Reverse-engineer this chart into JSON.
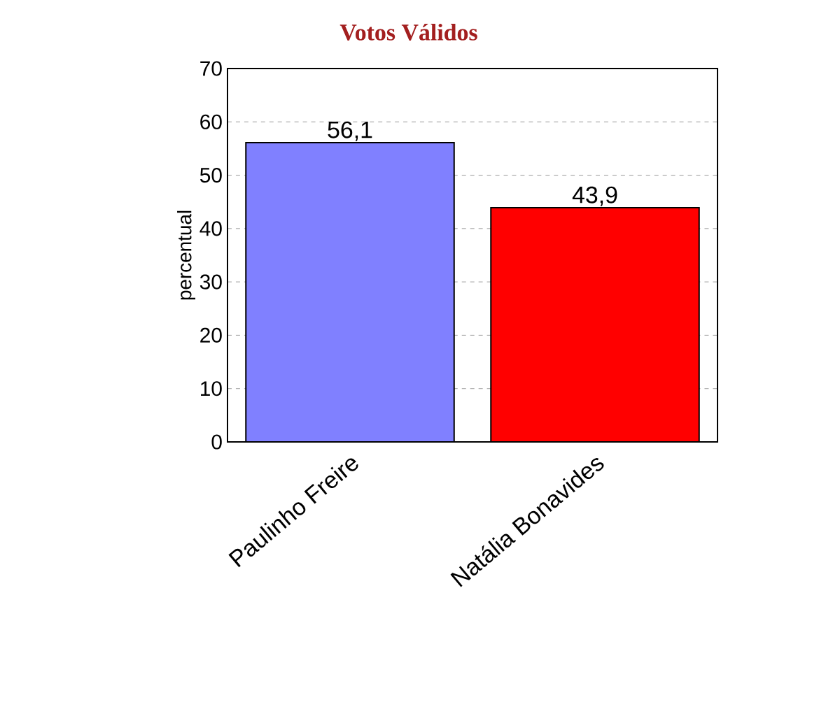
{
  "chart_data": {
    "type": "bar",
    "title": "Votos Válidos",
    "ylabel": "percentual",
    "categories": [
      "Paulinho Freire",
      "Natália Bonavides"
    ],
    "values": [
      56.1,
      43.9
    ],
    "colors": [
      "#8080ff",
      "#ff0000"
    ],
    "value_labels": [
      "56,1",
      "43,9"
    ],
    "ylim": [
      0,
      70
    ],
    "yticks": [
      0,
      10,
      20,
      30,
      40,
      50,
      60,
      70
    ],
    "grid": "y"
  }
}
